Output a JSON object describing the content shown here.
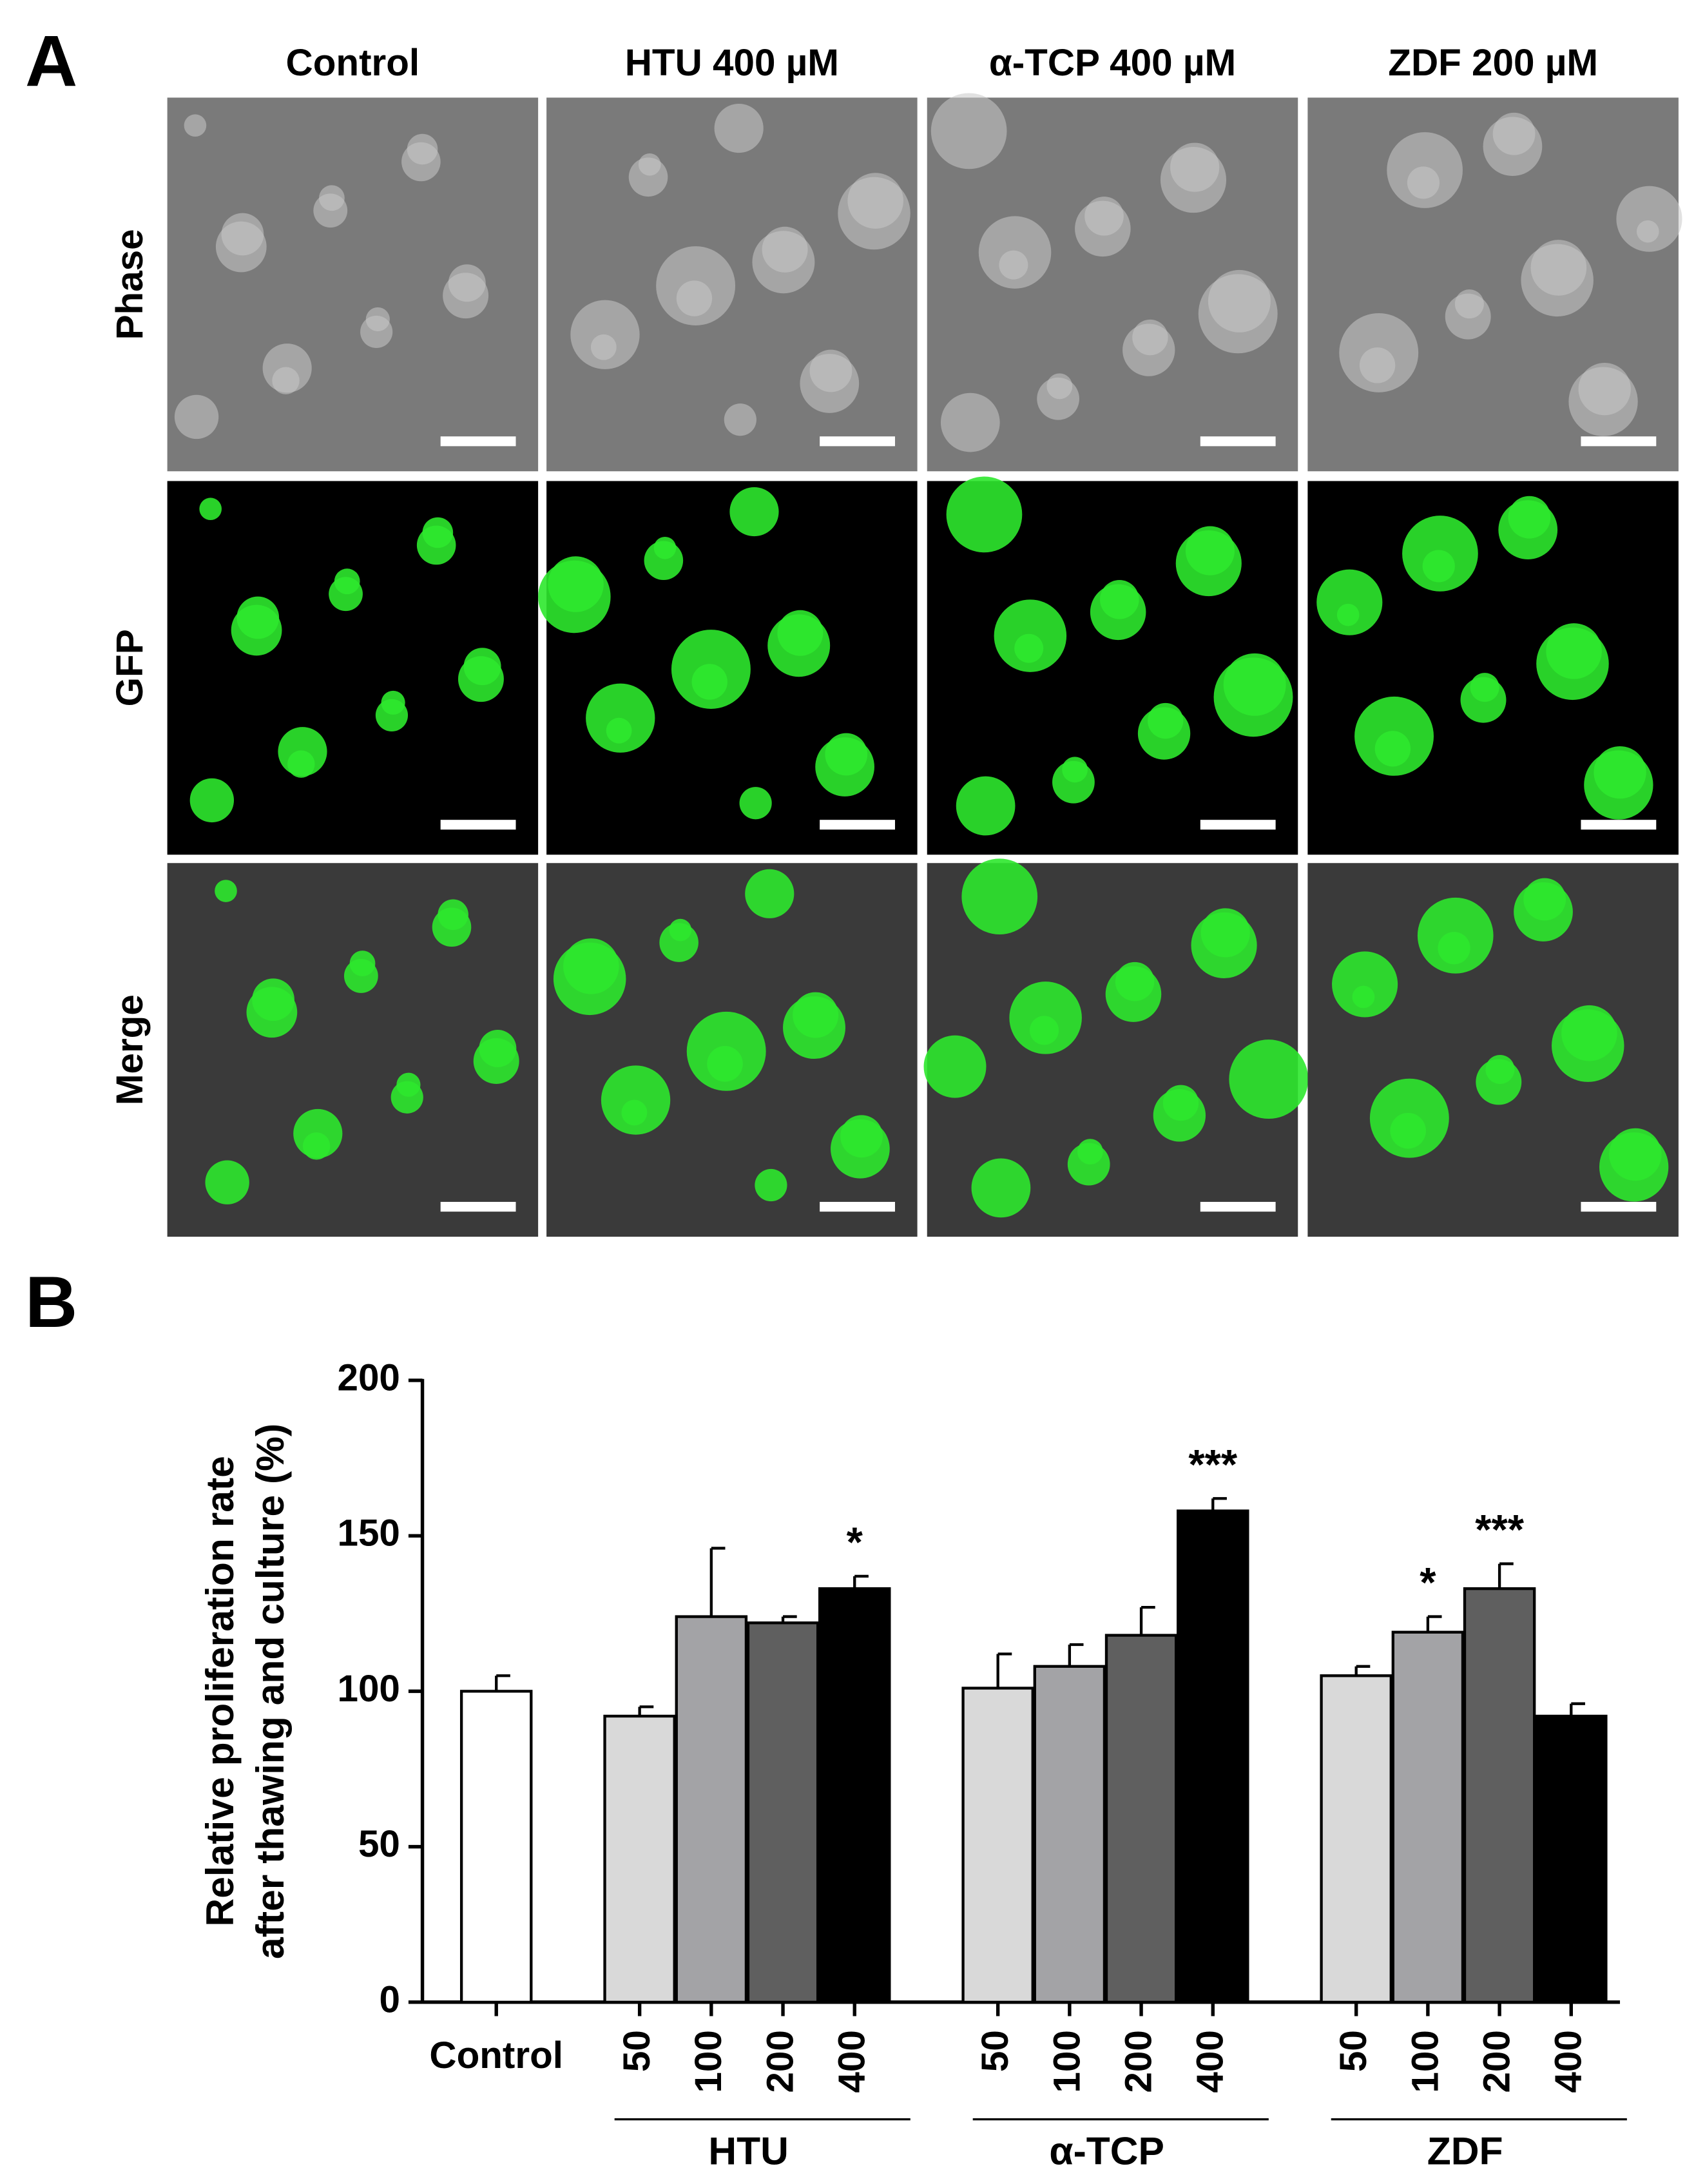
{
  "panel_a": {
    "label": "A",
    "columns": [
      "Control",
      "HTU 400 µM",
      "α-TCP 400 µM",
      "ZDF 200 µM"
    ],
    "rows": [
      "Phase",
      "GFP",
      "Merge"
    ]
  },
  "chart_data": {
    "type": "bar",
    "label": "B",
    "ylabel": [
      "Relative proliferation rate",
      "after thawing and culture (%)"
    ],
    "ylim": [
      0,
      200
    ],
    "yticks": [
      0,
      50,
      100,
      150,
      200
    ],
    "groups": [
      {
        "name": null,
        "categories": [
          "Control"
        ],
        "values": [
          100
        ],
        "errors": [
          5
        ],
        "colors": [
          "#ffffff"
        ],
        "significance": [
          null
        ]
      },
      {
        "name": "HTU",
        "categories": [
          "50",
          "100",
          "200",
          "400"
        ],
        "values": [
          92,
          124,
          122,
          133
        ],
        "errors": [
          3,
          22,
          2,
          4
        ],
        "colors": [
          "#d9d9d9",
          "#a3a3a6",
          "#5f5f5f",
          "#000000"
        ],
        "significance": [
          null,
          null,
          null,
          "*"
        ]
      },
      {
        "name": "α-TCP",
        "categories": [
          "50",
          "100",
          "200",
          "400"
        ],
        "values": [
          101,
          108,
          118,
          158
        ],
        "errors": [
          11,
          7,
          9,
          4
        ],
        "colors": [
          "#d9d9d9",
          "#a3a3a6",
          "#5f5f5f",
          "#000000"
        ],
        "significance": [
          null,
          null,
          null,
          "***"
        ]
      },
      {
        "name": "ZDF",
        "categories": [
          "50",
          "100",
          "200",
          "400"
        ],
        "values": [
          105,
          119,
          133,
          92
        ],
        "errors": [
          3,
          5,
          8,
          4
        ],
        "colors": [
          "#d9d9d9",
          "#a3a3a6",
          "#5f5f5f",
          "#000000"
        ],
        "significance": [
          null,
          "*",
          "***",
          null
        ]
      }
    ]
  }
}
